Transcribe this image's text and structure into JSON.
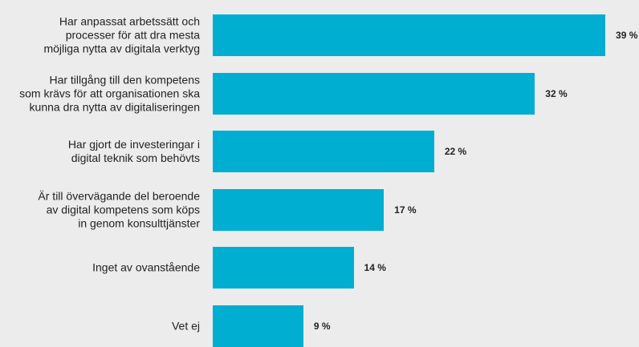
{
  "chart_data": {
    "type": "bar",
    "orientation": "horizontal",
    "categories": [
      "Har anpassat arbetssätt och\nprocesser för att dra mesta\nmöjliga nytta av digitala verktyg",
      "Har tillgång till den kompetens\nsom krävs för att organisationen ska\nkunna dra nytta av digitaliseringen",
      "Har gjort de investeringar i\ndigital teknik som behövts",
      "Är till övervägande del beroende\nav digital kompetens som köps\nin genom konsulttjänster",
      "Inget av ovanstående",
      "Vet ej"
    ],
    "values": [
      39,
      32,
      22,
      17,
      14,
      9
    ],
    "value_labels": [
      "39 %",
      "32 %",
      "22 %",
      "17 %",
      "14 %",
      "9 %"
    ],
    "color": "#00aed1"
  }
}
